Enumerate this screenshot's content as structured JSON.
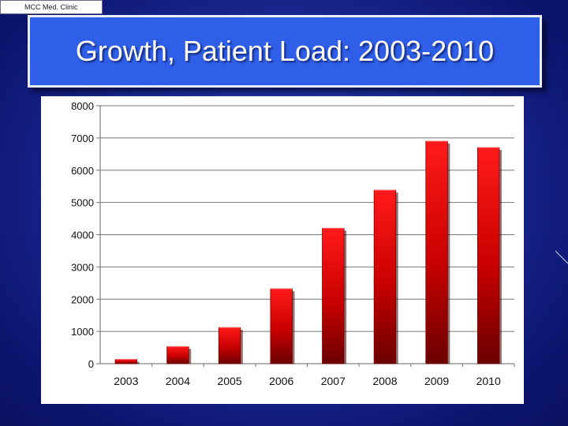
{
  "header": {
    "tag": "MCC Med. Clinic",
    "title": "Growth, Patient Load: 2003-2010"
  },
  "colors": {
    "background": "#1a2a96",
    "title_box": "#2f5fe8",
    "bar_top": "#ff1a1a",
    "bar_bottom": "#6a0000"
  },
  "chart_data": {
    "type": "bar",
    "title": "",
    "xlabel": "",
    "ylabel": "",
    "categories": [
      "2003",
      "2004",
      "2005",
      "2006",
      "2007",
      "2008",
      "2009",
      "2010"
    ],
    "values": [
      130,
      530,
      1120,
      2320,
      4200,
      5380,
      6900,
      6700
    ],
    "ylim": [
      0,
      8000
    ],
    "yticks": [
      0,
      1000,
      2000,
      3000,
      4000,
      5000,
      6000,
      7000,
      8000
    ],
    "grid": true,
    "legend": "none"
  }
}
